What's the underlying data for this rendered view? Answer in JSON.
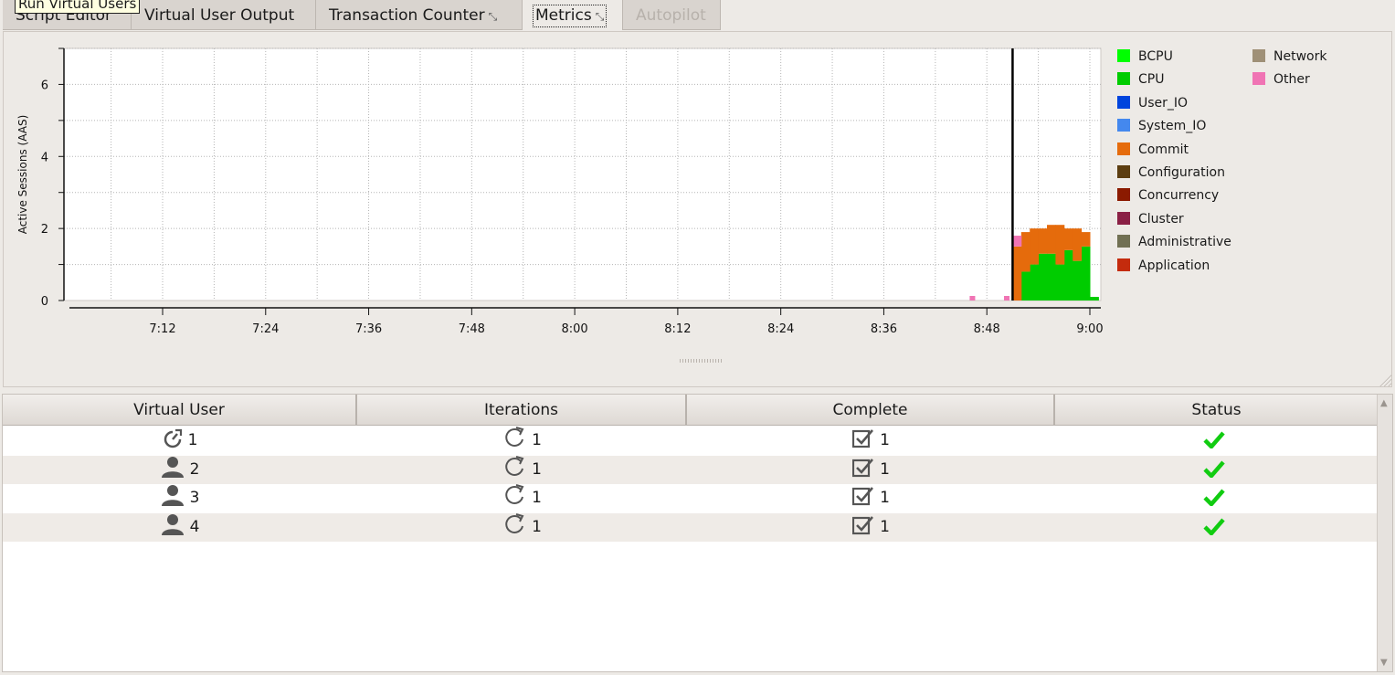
{
  "tooltip": "Run Virtual Users",
  "tabs": [
    {
      "label": "Script Editor",
      "state": "normal"
    },
    {
      "label": "Virtual User Output",
      "state": "normal"
    },
    {
      "label": "Transaction Counter",
      "state": "normal",
      "detachable": true
    },
    {
      "label": "Metrics",
      "state": "active",
      "detachable": true
    },
    {
      "label": "Autopilot",
      "state": "disabled"
    }
  ],
  "chart_data": {
    "type": "area",
    "ylabel": "Active Sessions (AAS)",
    "ylim": [
      0,
      7
    ],
    "yticks": [
      "0",
      "2",
      "4",
      "6"
    ],
    "xticks": [
      "7:12",
      "7:24",
      "7:36",
      "7:48",
      "8:00",
      "8:12",
      "8:24",
      "8:36",
      "8:48",
      "9:00"
    ],
    "marker_time": "8:51",
    "x": [
      "8:51",
      "8:52",
      "8:53",
      "8:54",
      "8:55",
      "8:56",
      "8:57",
      "8:58",
      "8:59",
      "9:00"
    ],
    "series": [
      {
        "name": "CPU",
        "values": [
          0,
          0.8,
          1.0,
          1.3,
          1.3,
          1.0,
          1.4,
          1.1,
          1.5,
          0.1
        ]
      },
      {
        "name": "Commit",
        "values": [
          1.5,
          1.1,
          1.0,
          0.7,
          0.8,
          1.1,
          0.6,
          0.9,
          0.4,
          0
        ]
      },
      {
        "name": "Other",
        "values": [
          0.3,
          0,
          0,
          0,
          0,
          0,
          0,
          0,
          0,
          0
        ]
      }
    ],
    "isolated_points": [
      {
        "series": "Other",
        "x": "8:46",
        "y": 0.05
      },
      {
        "series": "Other",
        "x": "8:50",
        "y": 0.05
      }
    ],
    "grid": true,
    "legend_placement": "right"
  },
  "legend": [
    {
      "name": "BCPU",
      "color": "#00ff00"
    },
    {
      "name": "CPU",
      "color": "#00cc00"
    },
    {
      "name": "User_IO",
      "color": "#0044dd"
    },
    {
      "name": "System_IO",
      "color": "#4488ee"
    },
    {
      "name": "Commit",
      "color": "#e56b0c"
    },
    {
      "name": "Configuration",
      "color": "#5c3d10"
    },
    {
      "name": "Concurrency",
      "color": "#8b1a00"
    },
    {
      "name": "Cluster",
      "color": "#8a2045"
    },
    {
      "name": "Administrative",
      "color": "#717053"
    },
    {
      "name": "Application",
      "color": "#c42b0d"
    },
    {
      "name": "Network",
      "color": "#9f9077"
    },
    {
      "name": "Other",
      "color": "#f074b4"
    }
  ],
  "table": {
    "headers": [
      "Virtual User",
      "Iterations",
      "Complete",
      "Status"
    ],
    "rows": [
      {
        "user": "1",
        "user_icon": "timer-icon",
        "iterations": "1",
        "complete": "1",
        "status": "ok"
      },
      {
        "user": "2",
        "user_icon": "user-icon",
        "iterations": "1",
        "complete": "1",
        "status": "ok"
      },
      {
        "user": "3",
        "user_icon": "user-icon",
        "iterations": "1",
        "complete": "1",
        "status": "ok"
      },
      {
        "user": "4",
        "user_icon": "user-icon",
        "iterations": "1",
        "complete": "1",
        "status": "ok"
      }
    ]
  },
  "colors": {
    "status_ok": "#11cc11",
    "icon_gray": "#555555"
  }
}
